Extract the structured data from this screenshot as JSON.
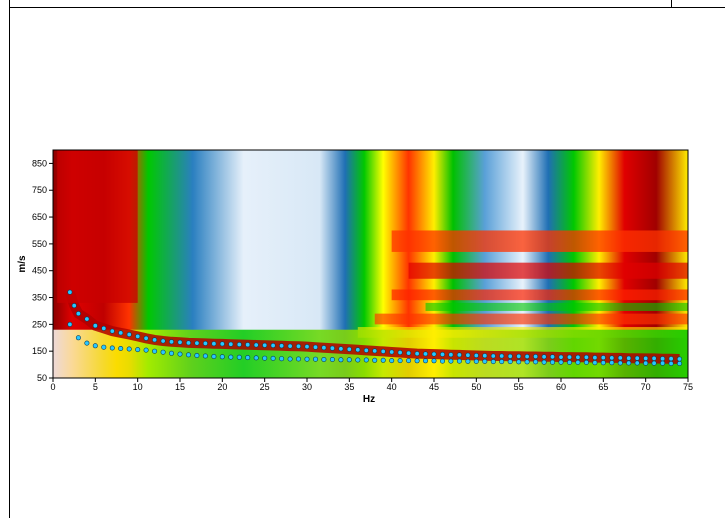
{
  "chart_data": {
    "type": "heatmap",
    "title": "",
    "xlabel": "Hz",
    "ylabel": "m/s",
    "xlim": [
      0,
      75
    ],
    "ylim": [
      50,
      900
    ],
    "x_ticks": [
      0,
      5,
      10,
      15,
      20,
      25,
      30,
      35,
      40,
      45,
      50,
      55,
      60,
      65,
      70,
      75
    ],
    "y_ticks": [
      50,
      150,
      250,
      350,
      450,
      550,
      650,
      750,
      850
    ],
    "grid": false,
    "legend": "none",
    "colormap": [
      "#ffffff",
      "#1f6fb4",
      "#00c800",
      "#ffff00",
      "#ff0000",
      "#8b0000"
    ],
    "series": [
      {
        "x": [
          2,
          2.5,
          3,
          4,
          5,
          6,
          7,
          8,
          9,
          10,
          11,
          12,
          13,
          14,
          15,
          16,
          17,
          18,
          19,
          20,
          21,
          22,
          23,
          24,
          25,
          26,
          27,
          28,
          29,
          30,
          31,
          32,
          33,
          34,
          35,
          36,
          37,
          38,
          39,
          40,
          41,
          42,
          43,
          44,
          45,
          46,
          47,
          48,
          49,
          50,
          51,
          52,
          53,
          54,
          55,
          56,
          57,
          58,
          59,
          60,
          61,
          62,
          63,
          64,
          65,
          66,
          67,
          68,
          69,
          70,
          71,
          72,
          73,
          74
        ],
        "y": [
          370,
          320,
          290,
          270,
          245,
          235,
          225,
          218,
          212,
          205,
          198,
          192,
          188,
          185,
          183,
          181,
          180,
          179,
          178,
          177,
          176,
          175,
          174,
          173,
          172,
          171,
          170,
          169,
          168,
          167,
          165,
          163,
          161,
          159,
          157,
          155,
          153,
          151,
          149,
          147,
          145,
          143,
          141,
          140,
          139,
          138,
          137,
          136,
          135,
          134,
          133,
          132,
          132,
          131,
          131,
          130,
          130,
          129,
          129,
          128,
          128,
          127,
          127,
          126,
          126,
          125,
          125,
          124,
          124,
          123,
          123,
          122,
          122,
          121
        ]
      },
      {
        "x": [
          2,
          3,
          4,
          5,
          6,
          7,
          8,
          9,
          10,
          11,
          12,
          13,
          14,
          15,
          16,
          17,
          18,
          19,
          20,
          21,
          22,
          23,
          24,
          25,
          26,
          27,
          28,
          29,
          30,
          31,
          32,
          33,
          34,
          35,
          36,
          37,
          38,
          39,
          40,
          41,
          42,
          43,
          44,
          45,
          46,
          47,
          48,
          49,
          50,
          51,
          52,
          53,
          54,
          55,
          56,
          57,
          58,
          59,
          60,
          61,
          62,
          63,
          64,
          65,
          66,
          67,
          68,
          69,
          70,
          71,
          72,
          73,
          74
        ],
        "y": [
          250,
          200,
          180,
          170,
          165,
          162,
          160,
          158,
          156,
          154,
          150,
          146,
          142,
          139,
          136,
          134,
          132,
          130,
          129,
          128,
          127,
          126,
          125,
          124,
          123,
          122,
          121,
          121,
          120,
          120,
          119,
          119,
          118,
          118,
          117,
          117,
          116,
          116,
          115,
          115,
          115,
          114,
          114,
          114,
          113,
          113,
          113,
          112,
          112,
          112,
          111,
          111,
          111,
          110,
          110,
          110,
          109,
          109,
          109,
          108,
          108,
          108,
          107,
          107,
          107,
          106,
          106,
          106,
          105,
          105,
          105,
          104,
          104
        ]
      }
    ]
  }
}
